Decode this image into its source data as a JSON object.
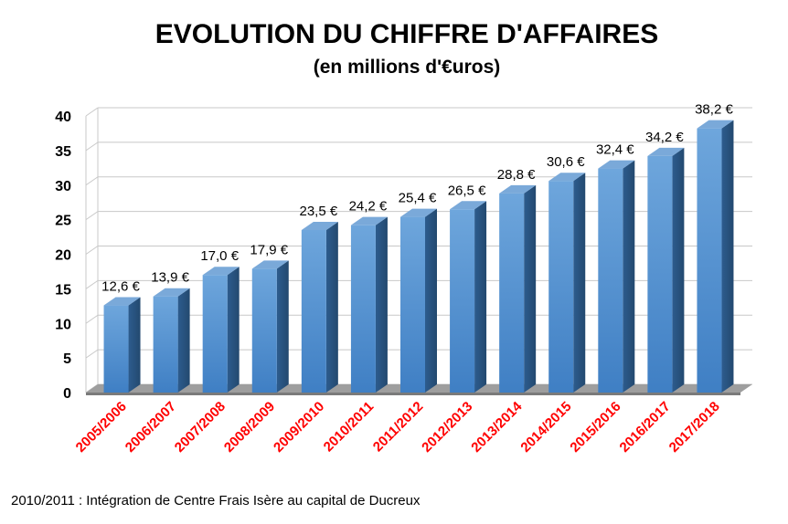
{
  "chart_data": {
    "type": "bar",
    "title": "EVOLUTION DU CHIFFRE D'AFFAIRES",
    "subtitle": "(en millions d'€uros)",
    "categories": [
      "2005/2006",
      "2006/2007",
      "2007/2008",
      "2008/2009",
      "2009/2010",
      "2010/2011",
      "2011/2012",
      "2012/2013",
      "2013/2014",
      "2014/2015",
      "2015/2016",
      "2016/2017",
      "2017/2018"
    ],
    "values": [
      12.6,
      13.9,
      17.0,
      17.9,
      23.5,
      24.2,
      25.4,
      26.5,
      28.8,
      30.6,
      32.4,
      34.2,
      38.2
    ],
    "data_labels": [
      "12,6 €",
      "13,9 €",
      "17,0 €",
      "17,9 €",
      "23,5 €",
      "24,2 €",
      "25,4 €",
      "26,5 €",
      "28,8 €",
      "30,6 €",
      "32,4 €",
      "34,2 €",
      "38,2 €"
    ],
    "yticks": [
      "0",
      "5",
      "10",
      "15",
      "20",
      "25",
      "30",
      "35",
      "40"
    ],
    "ylim": [
      0,
      40
    ],
    "grid": true,
    "style": "3d",
    "colors": {
      "bar": "#5b9bd5",
      "bar_side": "#2e5f8f",
      "bar_top": "#7aa9d9",
      "xtick": "#ff0000"
    }
  },
  "footnote": "2010/2011 : Intégration de Centre Frais Isère au capital de Ducreux"
}
